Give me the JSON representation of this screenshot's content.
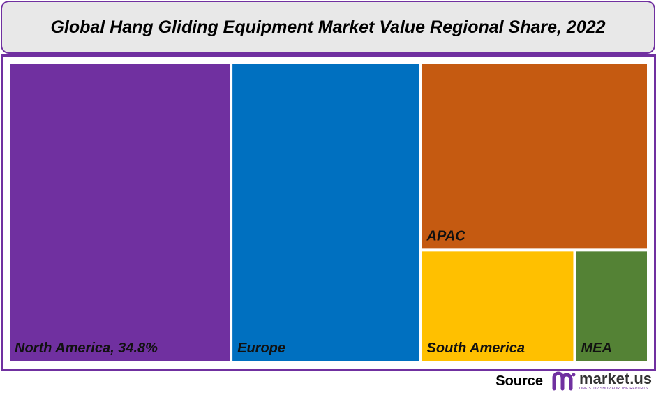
{
  "title": "Global Hang Gliding Equipment Market Value Regional Share, 2022",
  "chart_data": {
    "type": "treemap",
    "title": "Global Hang Gliding Equipment Market Value Regional Share, 2022",
    "unit": "%",
    "items": [
      {
        "name": "North America",
        "value": 34.8,
        "label": "North America, 34.8%",
        "color": "#7030a0"
      },
      {
        "name": "Europe",
        "value": 29.6,
        "label": "Europe",
        "color": "#0070c0"
      },
      {
        "name": "APAC",
        "value": 22.3,
        "label": "APAC",
        "color": "#c55a11"
      },
      {
        "name": "South America",
        "value": 9.0,
        "label": "South America",
        "color": "#ffc000"
      },
      {
        "name": "MEA",
        "value": 4.3,
        "label": "MEA",
        "color": "#548235"
      }
    ]
  },
  "footer": {
    "source_label": "Source",
    "brand": "market.us",
    "tagline": "ONE STOP SHOP FOR THE REPORTS"
  },
  "colors": {
    "accent": "#7030a0",
    "title_bg": "#e8e8e8"
  }
}
